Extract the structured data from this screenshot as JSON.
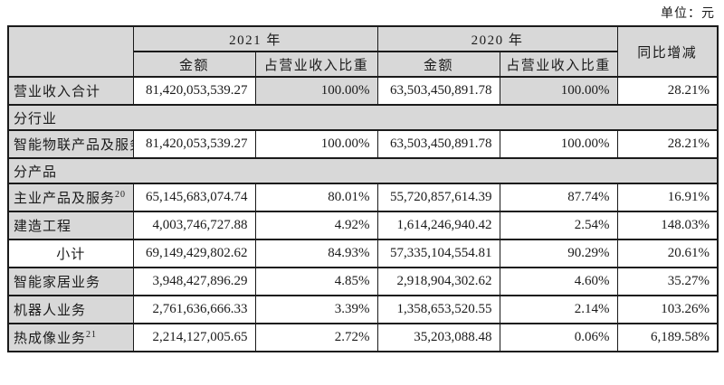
{
  "meta": {
    "unit_label": "单位：元"
  },
  "colors": {
    "header_bg": "#d8d8d8",
    "cell_bg": "#ffffff",
    "border": "#1a1a1a",
    "text": "#1a1a1a"
  },
  "table": {
    "header": {
      "year_2021": "2021 年",
      "year_2020": "2020 年",
      "amount": "金额",
      "proportion": "占营业收入比重",
      "yoy": "同比增减"
    },
    "rows": [
      {
        "type": "data",
        "label": "营业收入合计",
        "sup": "",
        "amount_2021": "81,420,053,539.27",
        "prop_2021": "100.00%",
        "amount_2020": "63,503,450,891.78",
        "prop_2020": "100.00%",
        "yoy": "28.21%",
        "shade_props": true,
        "subtotal": false
      },
      {
        "type": "section",
        "label": "分行业"
      },
      {
        "type": "data",
        "label": "智能物联产品及服务",
        "sup": "",
        "amount_2021": "81,420,053,539.27",
        "prop_2021": "100.00%",
        "amount_2020": "63,503,450,891.78",
        "prop_2020": "100.00%",
        "yoy": "28.21%",
        "shade_props": false,
        "subtotal": false
      },
      {
        "type": "section",
        "label": "分产品"
      },
      {
        "type": "data",
        "label": "主业产品及服务",
        "sup": "20",
        "amount_2021": "65,145,683,074.74",
        "prop_2021": "80.01%",
        "amount_2020": "55,720,857,614.39",
        "prop_2020": "87.74%",
        "yoy": "16.91%",
        "shade_props": false,
        "subtotal": false
      },
      {
        "type": "data",
        "label": "建造工程",
        "sup": "",
        "amount_2021": "4,003,746,727.88",
        "prop_2021": "4.92%",
        "amount_2020": "1,614,246,940.42",
        "prop_2020": "2.54%",
        "yoy": "148.03%",
        "shade_props": false,
        "subtotal": false
      },
      {
        "type": "data",
        "label": "小计",
        "sup": "",
        "amount_2021": "69,149,429,802.62",
        "prop_2021": "84.93%",
        "amount_2020": "57,335,104,554.81",
        "prop_2020": "90.29%",
        "yoy": "20.61%",
        "shade_props": false,
        "subtotal": true
      },
      {
        "type": "data",
        "label": "智能家居业务",
        "sup": "",
        "amount_2021": "3,948,427,896.29",
        "prop_2021": "4.85%",
        "amount_2020": "2,918,904,302.62",
        "prop_2020": "4.60%",
        "yoy": "35.27%",
        "shade_props": false,
        "subtotal": false
      },
      {
        "type": "data",
        "label": "机器人业务",
        "sup": "",
        "amount_2021": "2,761,636,666.33",
        "prop_2021": "3.39%",
        "amount_2020": "1,358,653,520.55",
        "prop_2020": "2.14%",
        "yoy": "103.26%",
        "shade_props": false,
        "subtotal": false
      },
      {
        "type": "data",
        "label": "热成像业务",
        "sup": "21",
        "amount_2021": "2,214,127,005.65",
        "prop_2021": "2.72%",
        "amount_2020": "35,203,088.48",
        "prop_2020": "0.06%",
        "yoy": "6,189.58%",
        "shade_props": false,
        "subtotal": false
      }
    ]
  }
}
